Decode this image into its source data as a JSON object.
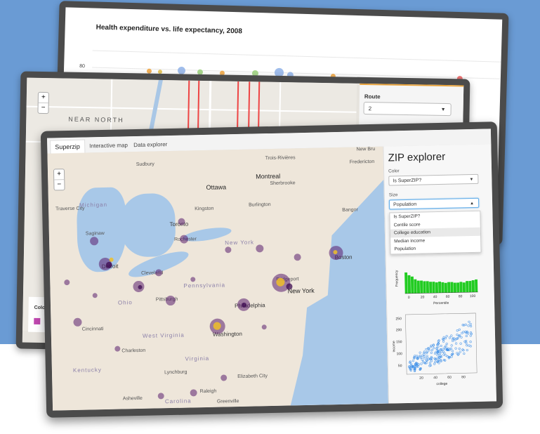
{
  "back_window": {
    "chart_title": "Health expenditure vs. life expectancy, 2008",
    "y_tick": "80"
  },
  "middle_window": {
    "map_label": "NEAR NORTH",
    "zoom_in": "+",
    "zoom_out": "−",
    "route_label": "Route",
    "route_value": "2",
    "color_label": "Colo"
  },
  "front_window": {
    "tabs": [
      {
        "label": "Superzip",
        "active": true
      },
      {
        "label": "Interactive map",
        "active": false
      },
      {
        "label": "Data explorer",
        "active": false
      }
    ],
    "zoom_in": "+",
    "zoom_out": "−",
    "map_labels": {
      "ottawa": "Ottawa",
      "montreal": "Montreal",
      "sherbrooke": "Sherbrooke",
      "trois_rivieres": "Trois-Rivières",
      "sudbury": "Sudbury",
      "kingston": "Kingston",
      "burlington": "Burlington",
      "toronto": "Toronto",
      "rochester": "Rochester",
      "detroit": "Detroit",
      "cleveland": "Cleveland",
      "pittsburgh": "Pittsburgh",
      "philadelphia": "Philadelphia",
      "new_york": "New York",
      "washington": "Washington",
      "boston": "Boston",
      "fredericton": "Fredericton",
      "bangor": "Bangor",
      "new_bru": "New Bru",
      "ohio": "Ohio",
      "pennsylvania": "Pennsylvania",
      "new_york_state": "New York",
      "west_virginia": "West Virginia",
      "virginia": "Virginia",
      "kentucky": "Kentucky",
      "carolina": "Carolina",
      "cincinnati": "Cincinnati",
      "charleston": "Charleston",
      "lynchburg": "Lynchburg",
      "raleigh": "Raleigh",
      "greenville": "Greenville",
      "asheville": "Asheville",
      "saginaw": "Saginaw",
      "michigan": "Michigan",
      "traverse_city": "Traverse City",
      "elizabeth_city": "Elizabeth City",
      "bridgeport": "Bridgeport"
    },
    "sidebar": {
      "title": "ZIP explorer",
      "color_label": "Color",
      "color_value": "Is SuperZIP?",
      "size_label": "Size",
      "size_value": "Population",
      "size_options": [
        "Is SuperZIP?",
        "Centile score",
        "College education",
        "Median income",
        "Population"
      ],
      "highlighted_option": "College education",
      "hist_ylabel": "Frequency",
      "hist_xlabel": "Percentile",
      "hist_ticks": [
        "0",
        "20",
        "40",
        "60",
        "80",
        "100"
      ],
      "scatter_xlabel": "college",
      "scatter_ylabel": "income",
      "scatter_yticks": [
        "250",
        "200",
        "150",
        "100",
        "50"
      ],
      "scatter_xticks": [
        "20",
        "40",
        "60",
        "80"
      ]
    }
  },
  "colors": {
    "background_blue": "#6a9bd4",
    "frame": "#4b4b4b",
    "hist_green": "#22cc22",
    "scatter_blue": "#3d8fe8",
    "superzip_gold": "#eebe28",
    "zip_purple": "#5a1e6e"
  }
}
